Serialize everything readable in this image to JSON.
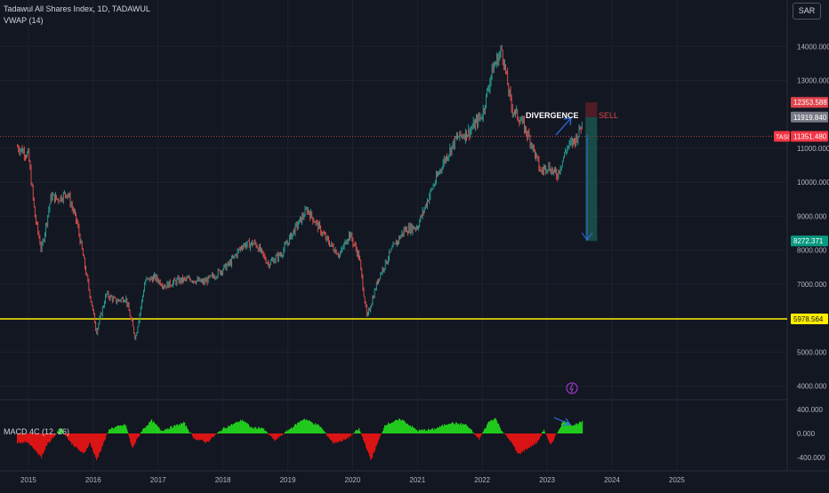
{
  "header": {
    "title": "Tadawul All Shares Index, 1D, TADAWUL",
    "indicator": "VWAP (14)",
    "currency": "SAR"
  },
  "lower_pane": {
    "title": "MACD 4C (12, 26)"
  },
  "colors": {
    "background": "#131722",
    "grid": "#1e222d",
    "up": "#26a69a",
    "down": "#ef5350",
    "macd_pos": "#22d11c",
    "macd_neg": "#e31414",
    "support": "#ffee00",
    "target": "#1b6157",
    "stop": "#5b1f27",
    "arrow": "#2f6fe6",
    "sell": "#e0444c"
  },
  "chart_data": [
    {
      "type": "candlestick",
      "title": "Tadawul All Shares Index, 1D, TADAWUL",
      "ylim": [
        3800,
        14600
      ],
      "y_ticks": [
        "14000.000",
        "13000.000",
        "11000.000",
        "10000.000",
        "9000.000",
        "8000.000",
        "7000.000",
        "5000.000",
        "4000.000"
      ],
      "x_ticks": [
        "2015",
        "2016",
        "2017",
        "2018",
        "2019",
        "2020",
        "2021",
        "2022",
        "2023",
        "2024",
        "2025"
      ],
      "x": [
        2014.83,
        2015.0,
        2015.1,
        2015.2,
        2015.35,
        2015.45,
        2015.6,
        2015.75,
        2015.9,
        2016.05,
        2016.2,
        2016.35,
        2016.5,
        2016.65,
        2016.8,
        2016.95,
        2017.1,
        2017.3,
        2017.5,
        2017.7,
        2017.9,
        2018.1,
        2018.3,
        2018.5,
        2018.7,
        2018.9,
        2019.1,
        2019.3,
        2019.4,
        2019.6,
        2019.8,
        2019.95,
        2020.1,
        2020.22,
        2020.4,
        2020.6,
        2020.8,
        2021.0,
        2021.2,
        2021.4,
        2021.6,
        2021.8,
        2022.0,
        2022.15,
        2022.3,
        2022.45,
        2022.6,
        2022.75,
        2022.9,
        2023.0,
        2023.15,
        2023.3,
        2023.45,
        2023.55
      ],
      "close": [
        11050,
        10800,
        9000,
        8000,
        9600,
        9500,
        9700,
        8800,
        7200,
        5600,
        6700,
        6500,
        6600,
        5400,
        7100,
        7200,
        6950,
        7100,
        7150,
        7050,
        7300,
        7600,
        8150,
        8200,
        7600,
        7900,
        8600,
        9200,
        8900,
        8300,
        7850,
        8500,
        7800,
        6000,
        7200,
        8000,
        8600,
        8700,
        9700,
        10600,
        11300,
        11500,
        12000,
        13300,
        13900,
        12200,
        11800,
        11200,
        10300,
        10500,
        10200,
        11000,
        11300,
        11800
      ],
      "levels": [
        {
          "name": "Current price",
          "label": "TASI",
          "value": 11351.48,
          "display": "11351.480"
        },
        {
          "name": "Entry",
          "value": 11919.84,
          "display": "11919.840"
        },
        {
          "name": "Stop",
          "value": 12353.588,
          "display": "12353.588"
        },
        {
          "name": "Target",
          "value": 8272.371,
          "display": "8272.371"
        },
        {
          "name": "Support",
          "value": 5978.564,
          "display": "5978.564"
        }
      ],
      "position": {
        "x_start": 2023.59,
        "x_end": 2023.77
      },
      "annotations": {
        "divergence": "DIVERGENCE",
        "sell": "SELL"
      }
    },
    {
      "type": "bar",
      "title": "MACD 4C (12, 26)",
      "ylim": [
        -550,
        550
      ],
      "y_ticks": [
        "400.000",
        "0.000",
        "-400.000"
      ],
      "x": [
        2014.83,
        2015.0,
        2015.2,
        2015.28,
        2015.5,
        2015.65,
        2015.85,
        2015.95,
        2016.05,
        2016.25,
        2016.5,
        2016.6,
        2016.75,
        2016.9,
        2017.05,
        2017.4,
        2017.55,
        2017.75,
        2018.0,
        2018.3,
        2018.45,
        2018.6,
        2018.8,
        2019.0,
        2019.25,
        2019.5,
        2019.7,
        2019.9,
        2020.1,
        2020.2,
        2020.28,
        2020.5,
        2020.75,
        2021.0,
        2021.25,
        2021.5,
        2021.75,
        2021.95,
        2022.1,
        2022.2,
        2022.3,
        2022.45,
        2022.55,
        2022.7,
        2022.85,
        2022.95,
        2023.05,
        2023.25,
        2023.4,
        2023.55
      ],
      "values": [
        -150,
        -150,
        -400,
        -200,
        100,
        -150,
        -350,
        -150,
        -450,
        80,
        150,
        -250,
        50,
        220,
        50,
        180,
        -80,
        -150,
        80,
        230,
        90,
        100,
        -120,
        50,
        250,
        120,
        -160,
        -100,
        80,
        -200,
        -450,
        150,
        240,
        50,
        70,
        180,
        150,
        -100,
        200,
        260,
        50,
        -150,
        -350,
        -250,
        -150,
        70,
        -200,
        210,
        140,
        200
      ],
      "annotations": {
        "arrow": "down-right"
      }
    }
  ]
}
